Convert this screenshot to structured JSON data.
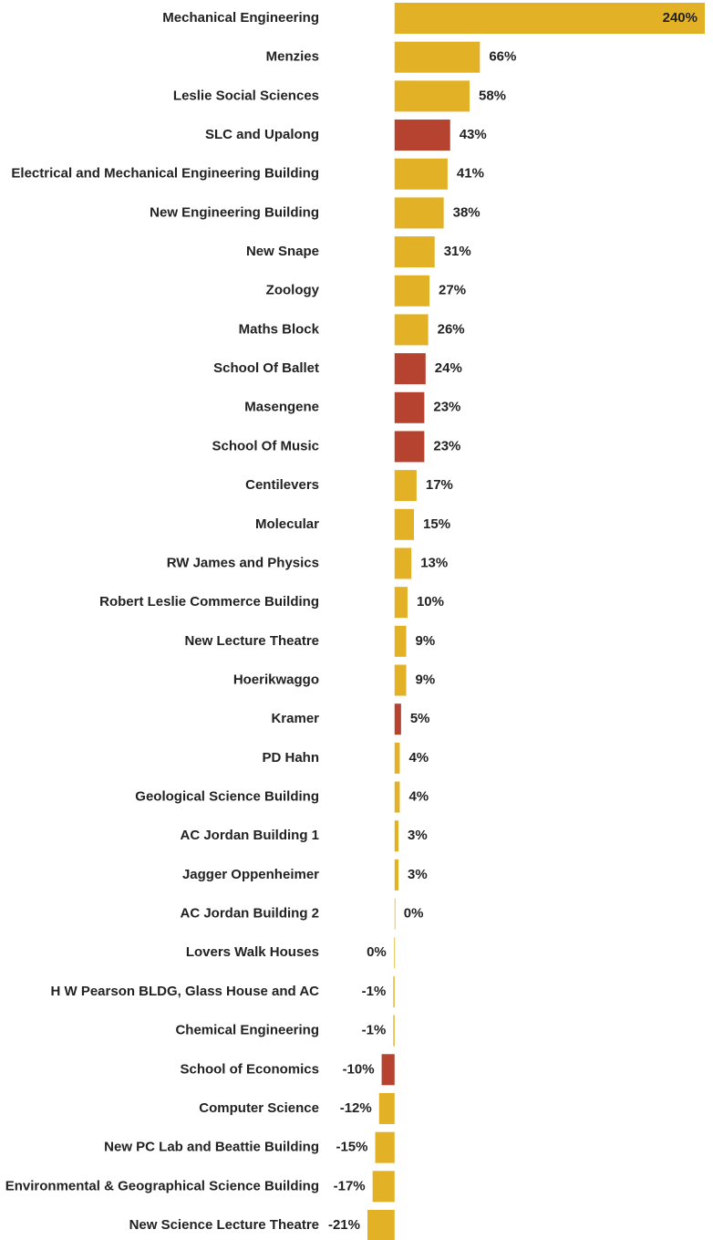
{
  "chart_data": {
    "type": "bar",
    "orientation": "horizontal",
    "categories": [
      "Mechanical Engineering",
      "Menzies",
      "Leslie Social Sciences",
      "SLC and Upalong",
      "Electrical and Mechanical Engineering Building",
      "New Engineering Building",
      "New Snape",
      "Zoology",
      "Maths Block",
      "School Of Ballet",
      "Masengene",
      "School Of Music",
      "Centilevers",
      "Molecular",
      "RW James and Physics",
      "Robert Leslie Commerce Building",
      "New Lecture Theatre",
      "Hoerikwaggo",
      "Kramer",
      "PD Hahn",
      "Geological Science Building",
      "AC Jordan Building 1",
      "Jagger Oppenheimer",
      "AC Jordan Building 2",
      "Lovers Walk Houses",
      "H W Pearson BLDG, Glass House and AC",
      "Chemical Engineering",
      "School of Economics",
      "Computer Science",
      "New PC Lab and Beattie Building",
      "Environmental & Geographical Science Building",
      "New Science Lecture Theatre"
    ],
    "values": [
      240,
      66,
      58,
      43,
      41,
      38,
      31,
      27,
      26,
      24,
      23,
      23,
      17,
      15,
      13,
      10,
      9,
      9,
      5,
      4,
      4,
      3,
      3,
      0,
      -0.3,
      -1,
      -1,
      -10,
      -12,
      -15,
      -17,
      -21
    ],
    "value_labels": [
      "240%",
      "66%",
      "58%",
      "43%",
      "41%",
      "38%",
      "31%",
      "27%",
      "26%",
      "24%",
      "23%",
      "23%",
      "17%",
      "15%",
      "13%",
      "10%",
      "9%",
      "9%",
      "5%",
      "4%",
      "4%",
      "3%",
      "3%",
      "0%",
      "0%",
      "-1%",
      "-1%",
      "-10%",
      "-12%",
      "-15%",
      "-17%",
      "-21%"
    ],
    "colors": [
      "#e3b126",
      "#e3b126",
      "#e3b126",
      "#b5432f",
      "#e3b126",
      "#e3b126",
      "#e3b126",
      "#e3b126",
      "#e3b126",
      "#b5432f",
      "#b5432f",
      "#b5432f",
      "#e3b126",
      "#e3b126",
      "#e3b126",
      "#e3b126",
      "#e3b126",
      "#e3b126",
      "#b5432f",
      "#e3b126",
      "#e3b126",
      "#e3b126",
      "#e3b126",
      "#e3b126",
      "#e3b126",
      "#e3b126",
      "#e3b126",
      "#b5432f",
      "#e3b126",
      "#e3b126",
      "#e3b126",
      "#e3b126"
    ]
  }
}
